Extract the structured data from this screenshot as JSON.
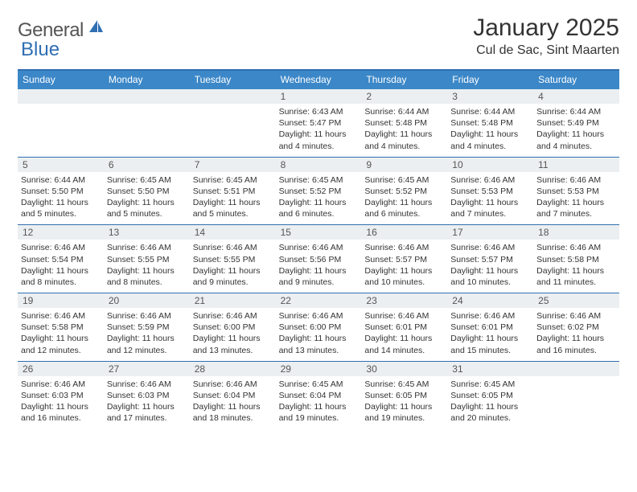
{
  "logo": {
    "text1": "General",
    "text2": "Blue"
  },
  "title": "January 2025",
  "location": "Cul de Sac, Sint Maarten",
  "colors": {
    "header_bar": "#3b87c8",
    "accent": "#2f6fb2",
    "daynum_bg": "#eceff1",
    "text": "#333333",
    "logo_gray": "#555555"
  },
  "days_of_week": [
    "Sunday",
    "Monday",
    "Tuesday",
    "Wednesday",
    "Thursday",
    "Friday",
    "Saturday"
  ],
  "weeks": [
    [
      null,
      null,
      null,
      {
        "n": "1",
        "sr": "6:43 AM",
        "ss": "5:47 PM",
        "dl": "11 hours and 4 minutes."
      },
      {
        "n": "2",
        "sr": "6:44 AM",
        "ss": "5:48 PM",
        "dl": "11 hours and 4 minutes."
      },
      {
        "n": "3",
        "sr": "6:44 AM",
        "ss": "5:48 PM",
        "dl": "11 hours and 4 minutes."
      },
      {
        "n": "4",
        "sr": "6:44 AM",
        "ss": "5:49 PM",
        "dl": "11 hours and 4 minutes."
      }
    ],
    [
      {
        "n": "5",
        "sr": "6:44 AM",
        "ss": "5:50 PM",
        "dl": "11 hours and 5 minutes."
      },
      {
        "n": "6",
        "sr": "6:45 AM",
        "ss": "5:50 PM",
        "dl": "11 hours and 5 minutes."
      },
      {
        "n": "7",
        "sr": "6:45 AM",
        "ss": "5:51 PM",
        "dl": "11 hours and 5 minutes."
      },
      {
        "n": "8",
        "sr": "6:45 AM",
        "ss": "5:52 PM",
        "dl": "11 hours and 6 minutes."
      },
      {
        "n": "9",
        "sr": "6:45 AM",
        "ss": "5:52 PM",
        "dl": "11 hours and 6 minutes."
      },
      {
        "n": "10",
        "sr": "6:46 AM",
        "ss": "5:53 PM",
        "dl": "11 hours and 7 minutes."
      },
      {
        "n": "11",
        "sr": "6:46 AM",
        "ss": "5:53 PM",
        "dl": "11 hours and 7 minutes."
      }
    ],
    [
      {
        "n": "12",
        "sr": "6:46 AM",
        "ss": "5:54 PM",
        "dl": "11 hours and 8 minutes."
      },
      {
        "n": "13",
        "sr": "6:46 AM",
        "ss": "5:55 PM",
        "dl": "11 hours and 8 minutes."
      },
      {
        "n": "14",
        "sr": "6:46 AM",
        "ss": "5:55 PM",
        "dl": "11 hours and 9 minutes."
      },
      {
        "n": "15",
        "sr": "6:46 AM",
        "ss": "5:56 PM",
        "dl": "11 hours and 9 minutes."
      },
      {
        "n": "16",
        "sr": "6:46 AM",
        "ss": "5:57 PM",
        "dl": "11 hours and 10 minutes."
      },
      {
        "n": "17",
        "sr": "6:46 AM",
        "ss": "5:57 PM",
        "dl": "11 hours and 10 minutes."
      },
      {
        "n": "18",
        "sr": "6:46 AM",
        "ss": "5:58 PM",
        "dl": "11 hours and 11 minutes."
      }
    ],
    [
      {
        "n": "19",
        "sr": "6:46 AM",
        "ss": "5:58 PM",
        "dl": "11 hours and 12 minutes."
      },
      {
        "n": "20",
        "sr": "6:46 AM",
        "ss": "5:59 PM",
        "dl": "11 hours and 12 minutes."
      },
      {
        "n": "21",
        "sr": "6:46 AM",
        "ss": "6:00 PM",
        "dl": "11 hours and 13 minutes."
      },
      {
        "n": "22",
        "sr": "6:46 AM",
        "ss": "6:00 PM",
        "dl": "11 hours and 13 minutes."
      },
      {
        "n": "23",
        "sr": "6:46 AM",
        "ss": "6:01 PM",
        "dl": "11 hours and 14 minutes."
      },
      {
        "n": "24",
        "sr": "6:46 AM",
        "ss": "6:01 PM",
        "dl": "11 hours and 15 minutes."
      },
      {
        "n": "25",
        "sr": "6:46 AM",
        "ss": "6:02 PM",
        "dl": "11 hours and 16 minutes."
      }
    ],
    [
      {
        "n": "26",
        "sr": "6:46 AM",
        "ss": "6:03 PM",
        "dl": "11 hours and 16 minutes."
      },
      {
        "n": "27",
        "sr": "6:46 AM",
        "ss": "6:03 PM",
        "dl": "11 hours and 17 minutes."
      },
      {
        "n": "28",
        "sr": "6:46 AM",
        "ss": "6:04 PM",
        "dl": "11 hours and 18 minutes."
      },
      {
        "n": "29",
        "sr": "6:45 AM",
        "ss": "6:04 PM",
        "dl": "11 hours and 19 minutes."
      },
      {
        "n": "30",
        "sr": "6:45 AM",
        "ss": "6:05 PM",
        "dl": "11 hours and 19 minutes."
      },
      {
        "n": "31",
        "sr": "6:45 AM",
        "ss": "6:05 PM",
        "dl": "11 hours and 20 minutes."
      },
      null
    ]
  ],
  "labels": {
    "sunrise": "Sunrise:",
    "sunset": "Sunset:",
    "daylight": "Daylight:"
  }
}
